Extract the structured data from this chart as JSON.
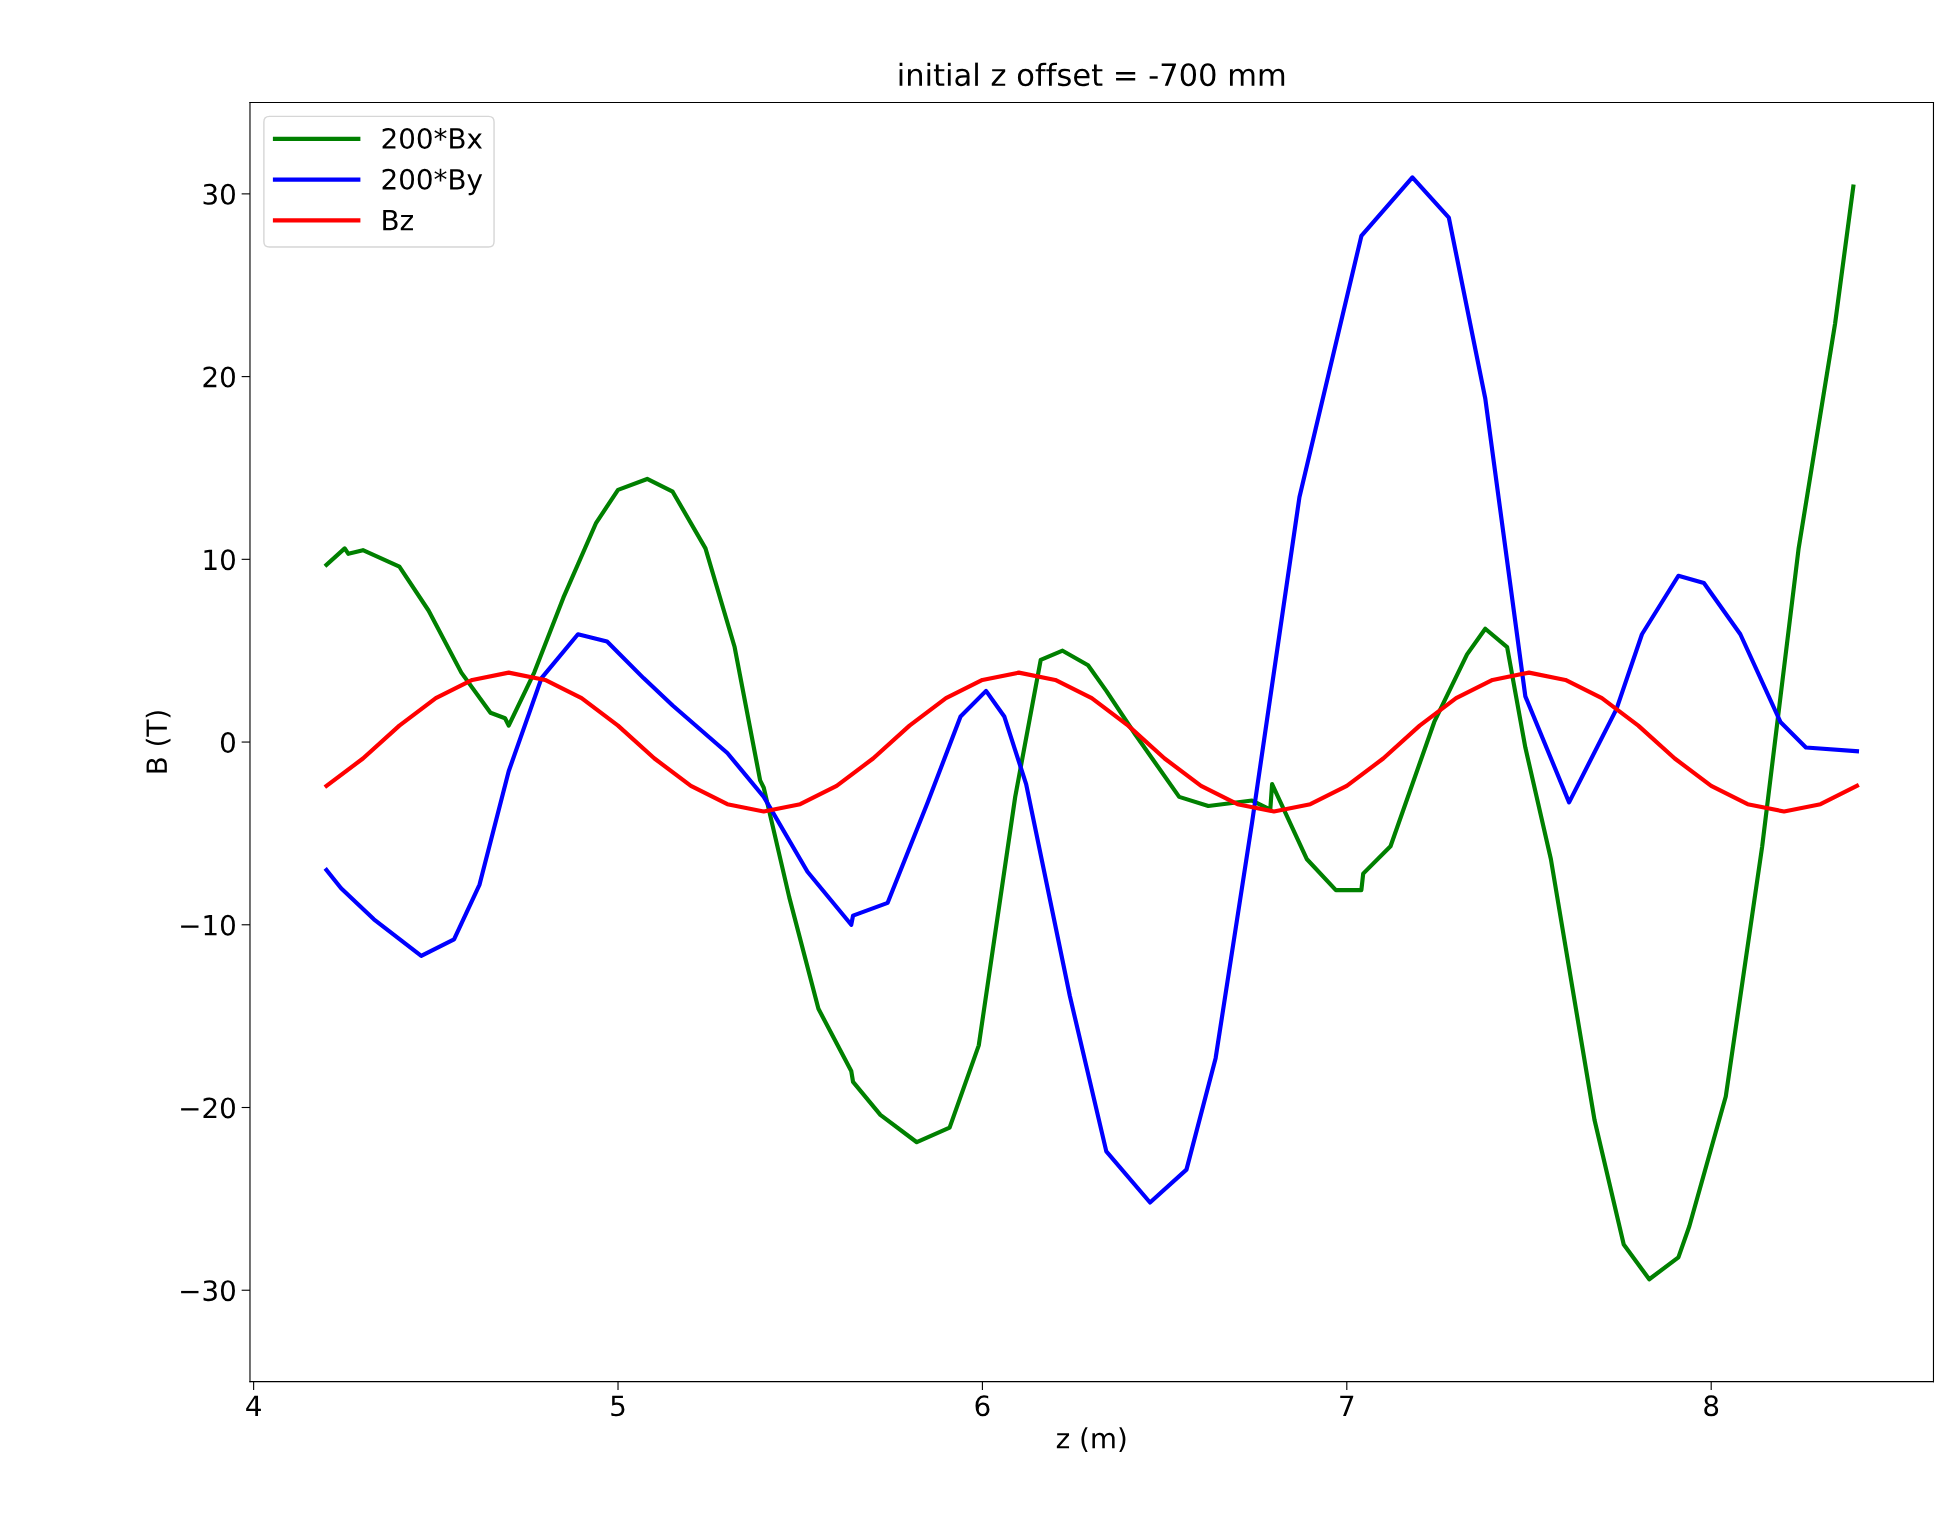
{
  "chart_data": {
    "type": "line",
    "title": "initial z offset = -700 mm",
    "xlabel": "z (m)",
    "ylabel": "B (T)",
    "xlim": [
      3.99,
      8.61
    ],
    "ylim": [
      -35,
      35
    ],
    "xticks": [
      4,
      5,
      6,
      7,
      8
    ],
    "yticks": [
      {
        "value": -30,
        "label": "−30"
      },
      {
        "value": -20,
        "label": "−20"
      },
      {
        "value": -10,
        "label": "−10"
      },
      0,
      10,
      20,
      30
    ],
    "grid": false,
    "legend": "top left",
    "marker": "none",
    "line_style": "solid",
    "series": [
      {
        "name": "200*Bx",
        "color": "#008000",
        "x": [
          4.2,
          4.25,
          4.26,
          4.3,
          4.4,
          4.48,
          4.57,
          4.65,
          4.69,
          4.7,
          4.77,
          4.85,
          4.94,
          4.95,
          5.0,
          5.08,
          5.15,
          5.24,
          5.32,
          5.39,
          5.4,
          5.47,
          5.55,
          5.64,
          5.645,
          5.72,
          5.82,
          5.91,
          5.99,
          6.09,
          6.16,
          6.22,
          6.29,
          6.34,
          6.42,
          6.54,
          6.62,
          6.74,
          6.79,
          6.795,
          6.89,
          6.97,
          7.04,
          7.045,
          7.12,
          7.24,
          7.33,
          7.38,
          7.44,
          7.49,
          7.56,
          7.68,
          7.76,
          7.83,
          7.91,
          7.94,
          8.04,
          8.14,
          8.24,
          8.34,
          8.39
        ],
        "values": [
          9.7,
          10.6,
          10.3,
          10.5,
          9.6,
          7.2,
          3.8,
          1.6,
          1.3,
          0.9,
          3.8,
          7.9,
          12.0,
          12.3,
          13.8,
          14.4,
          13.7,
          10.6,
          5.2,
          -2.1,
          -2.5,
          -8.5,
          -14.6,
          -18.0,
          -18.6,
          -20.4,
          -21.9,
          -21.1,
          -16.6,
          -3.0,
          4.5,
          5.0,
          4.2,
          2.8,
          0.4,
          -3.0,
          -3.5,
          -3.2,
          -3.7,
          -2.3,
          -6.4,
          -8.1,
          -8.1,
          -7.2,
          -5.7,
          1.1,
          4.8,
          6.2,
          5.2,
          -0.3,
          -6.4,
          -20.7,
          -27.5,
          -29.4,
          -28.2,
          -26.5,
          -19.4,
          -5.7,
          10.6,
          22.9,
          30.4
        ]
      },
      {
        "name": "200*By",
        "color": "#0000ff",
        "x": [
          4.2,
          4.24,
          4.33,
          4.46,
          4.55,
          4.62,
          4.7,
          4.79,
          4.89,
          4.97,
          5.07,
          5.15,
          5.3,
          5.4,
          5.52,
          5.64,
          5.645,
          5.74,
          5.85,
          5.94,
          6.01,
          6.06,
          6.12,
          6.24,
          6.34,
          6.46,
          6.56,
          6.64,
          6.74,
          6.87,
          7.04,
          7.18,
          7.28,
          7.38,
          7.49,
          7.61,
          7.74,
          7.81,
          7.91,
          7.98,
          8.08,
          8.19,
          8.26,
          8.4
        ],
        "values": [
          -7.0,
          -8.0,
          -9.7,
          -11.7,
          -10.8,
          -7.8,
          -1.6,
          3.5,
          5.9,
          5.5,
          3.5,
          2.0,
          -0.6,
          -3.0,
          -7.1,
          -10.0,
          -9.5,
          -8.8,
          -3.3,
          1.4,
          2.8,
          1.4,
          -2.3,
          -13.9,
          -22.4,
          -25.2,
          -23.4,
          -17.3,
          -4.4,
          13.4,
          27.7,
          30.9,
          28.7,
          18.8,
          2.5,
          -3.3,
          1.8,
          5.9,
          9.1,
          8.7,
          5.9,
          1.1,
          -0.3,
          -0.5
        ]
      },
      {
        "name": "Bz",
        "color": "#ff0000",
        "x": [
          4.2,
          4.3,
          4.4,
          4.5,
          4.6,
          4.7,
          4.8,
          4.9,
          5.0,
          5.1,
          5.2,
          5.3,
          5.4,
          5.5,
          5.6,
          5.7,
          5.8,
          5.9,
          6.0,
          6.1,
          6.2,
          6.3,
          6.4,
          6.5,
          6.6,
          6.7,
          6.8,
          6.9,
          7.0,
          7.1,
          7.2,
          7.3,
          7.4,
          7.5,
          7.6,
          7.7,
          7.8,
          7.9,
          8.0,
          8.1,
          8.2,
          8.3,
          8.4
        ],
        "values": [
          -2.4,
          -0.9,
          0.9,
          2.4,
          3.4,
          3.8,
          3.4,
          2.4,
          0.9,
          -0.9,
          -2.4,
          -3.4,
          -3.8,
          -3.4,
          -2.4,
          -0.9,
          0.9,
          2.4,
          3.4,
          3.8,
          3.4,
          2.4,
          0.9,
          -0.9,
          -2.4,
          -3.4,
          -3.8,
          -3.4,
          -2.4,
          -0.9,
          0.9,
          2.4,
          3.4,
          3.8,
          3.4,
          2.4,
          0.9,
          -0.9,
          -2.4,
          -3.4,
          -3.8,
          -3.4,
          -2.4
        ]
      }
    ]
  }
}
